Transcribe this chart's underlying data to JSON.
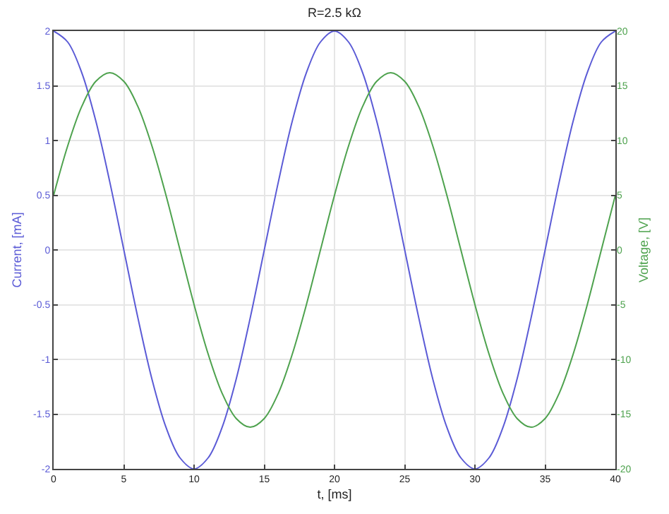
{
  "chart_data": {
    "type": "line",
    "title": "R=2.5 kΩ",
    "xlabel": "t, [ms]",
    "ylabel": "Current, [mA]",
    "y2label": "Voltage, [V]",
    "x": [
      0,
      1,
      2,
      3,
      4,
      5,
      6,
      7,
      8,
      9,
      10,
      11,
      12,
      13,
      14,
      15,
      16,
      17,
      18,
      19,
      20,
      21,
      22,
      23,
      24,
      25,
      26,
      27,
      28,
      29,
      30,
      31,
      32,
      33,
      34,
      35,
      36,
      37,
      38,
      39,
      40
    ],
    "series": [
      {
        "color": "#5b5bd6",
        "values": [
          2,
          1.9,
          1.62,
          1.18,
          0.62,
          0,
          -0.62,
          -1.18,
          -1.62,
          -1.9,
          -2,
          -1.9,
          -1.62,
          -1.18,
          -0.62,
          0,
          0.62,
          1.18,
          1.62,
          1.9,
          2,
          1.9,
          1.62,
          1.18,
          0.62,
          0,
          -0.62,
          -1.18,
          -1.62,
          -1.9,
          -2,
          -1.9,
          -1.62,
          -1.18,
          -0.62,
          0,
          0.62,
          1.18,
          1.62,
          1.9,
          2
        ]
      },
      {
        "color": "#4ea24e",
        "axis": "y2",
        "values": [
          5,
          9.5,
          13.1,
          15.4,
          16.2,
          15.4,
          13.1,
          9.5,
          5,
          0,
          -5,
          -9.5,
          -13.1,
          -15.4,
          -16.2,
          -15.4,
          -13.1,
          -9.5,
          -5,
          0,
          5,
          9.5,
          13.1,
          15.4,
          16.2,
          15.4,
          13.1,
          9.5,
          5,
          0,
          -5,
          -9.5,
          -13.1,
          -15.4,
          -16.2,
          -15.4,
          -13.1,
          -9.5,
          -5,
          0,
          5
        ]
      }
    ],
    "xlim": [
      0,
      40
    ],
    "xticks": [
      0,
      5,
      10,
      15,
      20,
      25,
      30,
      35,
      40
    ],
    "ylim": [
      -2,
      2
    ],
    "yticks": [
      -2,
      -1.5,
      -1,
      -0.5,
      0,
      0.5,
      1,
      1.5,
      2
    ],
    "y2lim": [
      -20,
      20
    ],
    "y2ticks": [
      -20,
      -15,
      -10,
      -5,
      0,
      5,
      10,
      15,
      20
    ],
    "grid": true,
    "marker": "none",
    "line_style": "solid"
  }
}
